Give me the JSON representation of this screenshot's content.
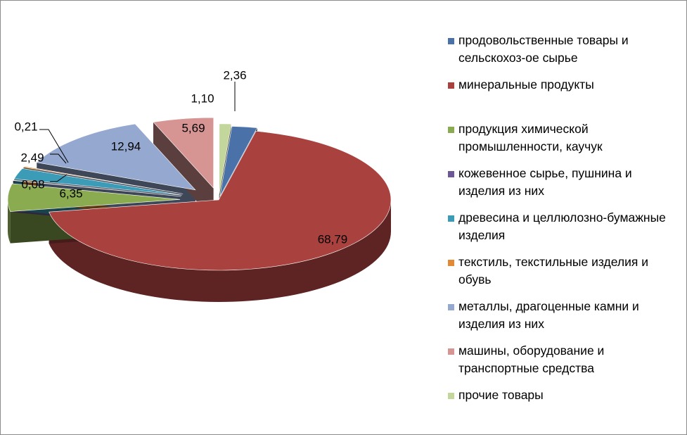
{
  "chart_data": {
    "type": "pie",
    "style": "3d-exploded",
    "legend_position": "right",
    "series": [
      {
        "label": "продовольственные товары и сельскохоз-ое сырье",
        "value": 2.36,
        "value_label": "2,36",
        "color": "#4a72a8"
      },
      {
        "label": "минеральные продукты",
        "value": 68.79,
        "value_label": "68,79",
        "color": "#a9413f"
      },
      {
        "label": "продукция химической промышленности, каучук",
        "value": 6.35,
        "value_label": "6,35",
        "color": "#8aab4f"
      },
      {
        "label": "кожевенное сырье, пушнина и изделия из них",
        "value": 0.08,
        "value_label": "0,08",
        "color": "#6d5896"
      },
      {
        "label": "древесина и целлюлозно-бумажные изделия",
        "value": 2.49,
        "value_label": "2,49",
        "color": "#3c9cb8"
      },
      {
        "label": "текстиль, текстильные изделия  и обувь",
        "value": 0.21,
        "value_label": "0,21",
        "color": "#e08a35"
      },
      {
        "label": "металлы, драгоценные камни и изделия из них",
        "value": 12.94,
        "value_label": "12,94",
        "color": "#94a8d0"
      },
      {
        "label": "машины, оборудование и транспортные средства",
        "value": 5.69,
        "value_label": "5,69",
        "color": "#d69593"
      },
      {
        "label": "прочие товары",
        "value": 1.1,
        "value_label": "1,10",
        "color": "#c3d69b"
      }
    ]
  }
}
